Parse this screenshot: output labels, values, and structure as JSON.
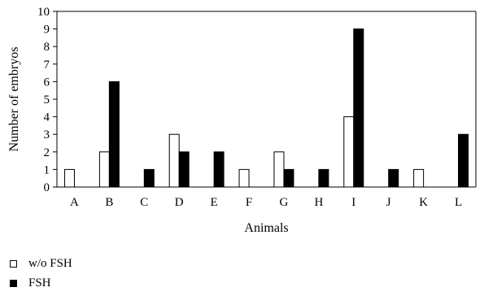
{
  "chart_data": {
    "type": "bar",
    "xlabel": "Animals",
    "ylabel": "Number of embryos",
    "ylim": [
      0,
      10
    ],
    "yticks": [
      0,
      1,
      2,
      3,
      4,
      5,
      6,
      7,
      8,
      9,
      10
    ],
    "categories": [
      "A",
      "B",
      "C",
      "D",
      "E",
      "F",
      "G",
      "H",
      "I",
      "J",
      "K",
      "L"
    ],
    "series": [
      {
        "name": "w/o FSH",
        "color": "#ffffff",
        "values": [
          1,
          2,
          0,
          3,
          0,
          1,
          2,
          0,
          4,
          0,
          1,
          0
        ]
      },
      {
        "name": "FSH",
        "color": "#000000",
        "values": [
          0,
          6,
          1,
          2,
          2,
          0,
          1,
          1,
          9,
          1,
          0,
          3
        ]
      }
    ],
    "grid": false,
    "legend_position": "bottom-left"
  }
}
